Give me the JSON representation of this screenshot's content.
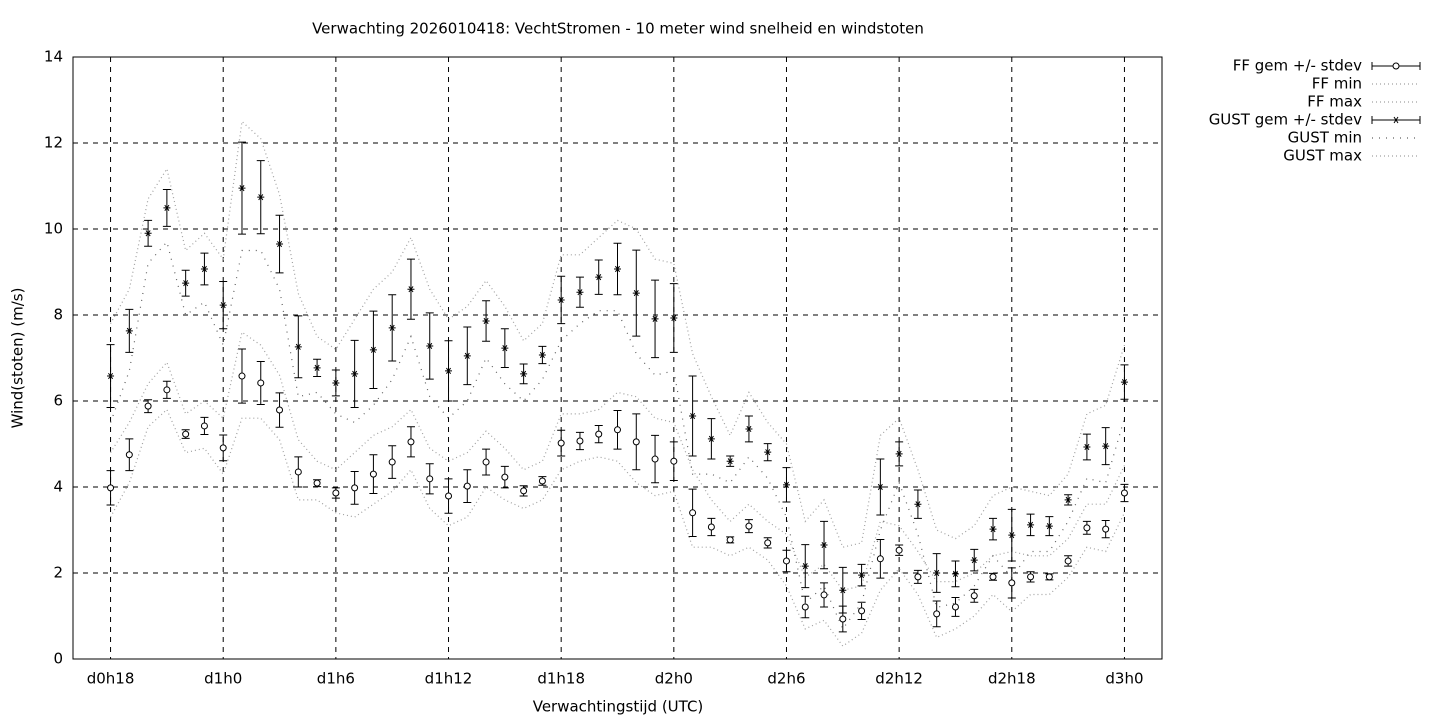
{
  "chart_data": {
    "type": "errorbar-line",
    "title": "Verwachting 2026010418: VechtStromen - 10 meter wind snelheid en windstoten",
    "xlabel": "Verwachtingstijd (UTC)",
    "ylabel": "Wind(stoten) (m/s)",
    "x": [
      18,
      19,
      20,
      21,
      22,
      23,
      24,
      25,
      26,
      27,
      28,
      29,
      30,
      31,
      32,
      33,
      34,
      35,
      36,
      37,
      38,
      39,
      40,
      41,
      42,
      43,
      44,
      45,
      46,
      47,
      48,
      49,
      50,
      51,
      52,
      53,
      54,
      55,
      56,
      57,
      58,
      59,
      60,
      61,
      62,
      63,
      64,
      65,
      66,
      67,
      68,
      69,
      70,
      71,
      72
    ],
    "xlim": [
      16,
      74
    ],
    "xticks": [
      {
        "value": 18,
        "label": "d0h18"
      },
      {
        "value": 24,
        "label": "d1h0"
      },
      {
        "value": 30,
        "label": "d1h6"
      },
      {
        "value": 36,
        "label": "d1h12"
      },
      {
        "value": 42,
        "label": "d1h18"
      },
      {
        "value": 48,
        "label": "d2h0"
      },
      {
        "value": 54,
        "label": "d2h6"
      },
      {
        "value": 60,
        "label": "d2h12"
      },
      {
        "value": 66,
        "label": "d2h18"
      },
      {
        "value": 72,
        "label": "d3h0"
      }
    ],
    "ylim": [
      0,
      14
    ],
    "yticks": [
      0,
      2,
      4,
      6,
      8,
      10,
      12,
      14
    ],
    "grid": true,
    "legend": "outside-top-right",
    "series": [
      {
        "name": "FF gem +/- stdev",
        "style": "errorbars",
        "marker": "circle",
        "color": "#000000",
        "values": [
          3.98,
          4.75,
          5.88,
          6.26,
          5.23,
          5.42,
          4.91,
          6.58,
          6.42,
          5.79,
          4.35,
          4.09,
          3.86,
          3.98,
          4.3,
          4.58,
          5.05,
          4.19,
          3.79,
          4.02,
          4.58,
          4.23,
          3.91,
          4.14,
          5.02,
          5.07,
          5.23,
          5.33,
          5.05,
          4.65,
          4.6,
          3.4,
          3.07,
          2.77,
          3.09,
          2.7,
          2.28,
          1.21,
          1.49,
          0.93,
          1.12,
          2.33,
          2.53,
          1.91,
          1.05,
          1.21,
          1.47,
          1.91,
          1.77,
          1.91,
          1.91,
          2.28,
          3.05,
          3.02,
          3.86
        ],
        "errors": [
          0.4,
          0.37,
          0.15,
          0.2,
          0.1,
          0.2,
          0.3,
          0.63,
          0.5,
          0.4,
          0.35,
          0.08,
          0.12,
          0.38,
          0.45,
          0.38,
          0.35,
          0.35,
          0.4,
          0.38,
          0.3,
          0.25,
          0.12,
          0.1,
          0.3,
          0.2,
          0.2,
          0.45,
          0.65,
          0.55,
          0.45,
          0.55,
          0.2,
          0.07,
          0.15,
          0.12,
          0.25,
          0.25,
          0.28,
          0.3,
          0.2,
          0.45,
          0.12,
          0.15,
          0.3,
          0.22,
          0.15,
          0.08,
          0.35,
          0.12,
          0.07,
          0.12,
          0.15,
          0.2,
          0.2
        ]
      },
      {
        "name": "FF min",
        "style": "dotted",
        "color": "#a0a0a0",
        "values": [
          3.3,
          4.1,
          5.4,
          5.8,
          4.8,
          4.9,
          4.3,
          5.6,
          5.6,
          5.1,
          3.7,
          3.7,
          3.4,
          3.3,
          3.6,
          3.9,
          4.4,
          3.5,
          3.1,
          3.3,
          4.0,
          3.7,
          3.5,
          3.7,
          4.4,
          4.6,
          4.7,
          4.6,
          4.1,
          3.8,
          3.9,
          2.6,
          2.6,
          2.4,
          2.6,
          2.3,
          1.7,
          0.7,
          0.9,
          0.3,
          0.6,
          1.6,
          2.1,
          1.5,
          0.5,
          0.7,
          1.0,
          1.5,
          1.1,
          1.5,
          1.5,
          1.9,
          2.6,
          2.5,
          3.4
        ]
      },
      {
        "name": "FF max",
        "style": "dotted",
        "color": "#a0a0a0",
        "values": [
          4.8,
          5.5,
          6.4,
          6.9,
          5.7,
          6.0,
          5.6,
          7.6,
          7.3,
          6.6,
          5.1,
          4.6,
          4.4,
          4.8,
          5.2,
          5.4,
          5.8,
          4.9,
          4.6,
          4.8,
          5.3,
          4.9,
          4.4,
          4.6,
          5.7,
          5.7,
          5.8,
          6.2,
          6.1,
          5.6,
          5.5,
          4.4,
          3.7,
          3.2,
          3.6,
          3.2,
          2.9,
          1.9,
          2.2,
          1.6,
          1.7,
          3.2,
          3.1,
          2.5,
          1.8,
          1.8,
          2.0,
          2.4,
          2.5,
          2.4,
          2.4,
          2.8,
          3.6,
          3.6,
          4.5
        ]
      },
      {
        "name": "GUST gem +/- stdev",
        "style": "errorbars",
        "marker": "star",
        "color": "#000000",
        "values": [
          6.58,
          7.63,
          9.9,
          10.49,
          8.74,
          9.07,
          8.23,
          10.95,
          10.74,
          9.65,
          7.26,
          6.77,
          6.42,
          6.63,
          7.19,
          7.7,
          8.6,
          7.28,
          6.7,
          7.05,
          7.86,
          7.23,
          6.63,
          7.07,
          8.35,
          8.53,
          8.88,
          9.07,
          8.51,
          7.91,
          7.93,
          5.65,
          5.12,
          4.6,
          5.35,
          4.81,
          4.05,
          2.16,
          2.65,
          1.6,
          1.95,
          4.0,
          4.77,
          3.6,
          2.0,
          1.98,
          2.3,
          3.02,
          2.88,
          3.12,
          3.09,
          3.7,
          4.93,
          4.95,
          6.44
        ],
        "errors": [
          0.73,
          0.5,
          0.3,
          0.43,
          0.3,
          0.37,
          0.55,
          1.07,
          0.85,
          0.67,
          0.72,
          0.2,
          0.3,
          0.78,
          0.9,
          0.77,
          0.7,
          0.77,
          0.7,
          0.67,
          0.47,
          0.45,
          0.23,
          0.2,
          0.55,
          0.35,
          0.4,
          0.6,
          1.0,
          0.9,
          0.8,
          0.93,
          0.47,
          0.12,
          0.3,
          0.2,
          0.4,
          0.5,
          0.55,
          0.53,
          0.25,
          0.65,
          0.28,
          0.33,
          0.45,
          0.3,
          0.25,
          0.25,
          0.6,
          0.25,
          0.22,
          0.12,
          0.3,
          0.43,
          0.4
        ]
      },
      {
        "name": "GUST min",
        "style": "dotted-sparse",
        "color": "#606060",
        "values": [
          5.5,
          6.7,
          9.2,
          9.7,
          8.0,
          8.3,
          7.3,
          9.5,
          9.5,
          8.6,
          6.1,
          6.2,
          5.7,
          5.5,
          5.9,
          6.5,
          7.5,
          6.1,
          5.6,
          6.0,
          7.0,
          6.4,
          6.0,
          6.5,
          7.4,
          7.8,
          8.1,
          8.1,
          7.1,
          6.6,
          6.7,
          4.3,
          4.3,
          4.1,
          4.7,
          4.2,
          3.3,
          1.3,
          1.7,
          0.7,
          1.3,
          3.0,
          4.1,
          2.9,
          1.2,
          1.3,
          1.7,
          2.4,
          1.9,
          2.5,
          2.5,
          3.2,
          4.2,
          4.1,
          5.6
        ]
      },
      {
        "name": "GUST max",
        "style": "dotted",
        "color": "#a0a0a0",
        "values": [
          7.8,
          8.6,
          10.7,
          11.4,
          9.5,
          9.9,
          9.3,
          12.5,
          12.1,
          10.8,
          8.5,
          7.5,
          7.2,
          7.9,
          8.6,
          9.0,
          9.8,
          8.6,
          7.9,
          8.2,
          8.8,
          8.2,
          7.4,
          7.8,
          9.4,
          9.4,
          9.8,
          10.2,
          10.0,
          9.3,
          9.2,
          7.1,
          6.1,
          5.2,
          6.2,
          5.5,
          5.0,
          3.2,
          3.7,
          2.6,
          2.7,
          5.2,
          5.6,
          4.4,
          3.0,
          2.8,
          3.1,
          3.8,
          4.0,
          3.9,
          3.8,
          4.3,
          5.7,
          5.9,
          7.3
        ]
      }
    ]
  }
}
